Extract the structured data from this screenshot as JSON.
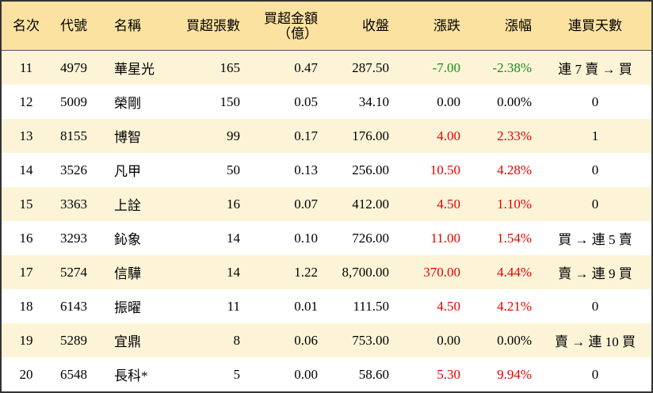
{
  "table": {
    "headers": [
      "名次",
      "代號",
      "名稱",
      "買超張數",
      "買超金額\n（億）",
      "收盤",
      "漲跌",
      "漲幅",
      "連買天數"
    ],
    "header_color": "#fce2a0",
    "stripe_color": "#fdf4d8",
    "rows": [
      {
        "cells": [
          "11",
          "4979",
          "華星光",
          "165",
          "0.47",
          "287.50",
          "-7.00",
          "-2.38%",
          "連 7 賣 → 買"
        ],
        "change_color": "#1a8c1a"
      },
      {
        "cells": [
          "12",
          "5009",
          "榮剛",
          "150",
          "0.05",
          "34.10",
          "0.00",
          "0.00%",
          "0"
        ],
        "change_color": "#000000"
      },
      {
        "cells": [
          "13",
          "8155",
          "博智",
          "99",
          "0.17",
          "176.00",
          "4.00",
          "2.33%",
          "1"
        ],
        "change_color": "#e60000"
      },
      {
        "cells": [
          "14",
          "3526",
          "凡甲",
          "50",
          "0.13",
          "256.00",
          "10.50",
          "4.28%",
          "0"
        ],
        "change_color": "#e60000"
      },
      {
        "cells": [
          "15",
          "3363",
          "上詮",
          "16",
          "0.07",
          "412.00",
          "4.50",
          "1.10%",
          "0"
        ],
        "change_color": "#e60000"
      },
      {
        "cells": [
          "16",
          "3293",
          "鈊象",
          "14",
          "0.10",
          "726.00",
          "11.00",
          "1.54%",
          "買 → 連 5 賣"
        ],
        "change_color": "#e60000"
      },
      {
        "cells": [
          "17",
          "5274",
          "信驊",
          "14",
          "1.22",
          "8,700.00",
          "370.00",
          "4.44%",
          "賣 → 連 9 買"
        ],
        "change_color": "#e60000"
      },
      {
        "cells": [
          "18",
          "6143",
          "振曜",
          "11",
          "0.01",
          "111.50",
          "4.50",
          "4.21%",
          "0"
        ],
        "change_color": "#e60000"
      },
      {
        "cells": [
          "19",
          "5289",
          "宜鼎",
          "8",
          "0.06",
          "753.00",
          "0.00",
          "0.00%",
          "賣 → 連 10 買"
        ],
        "change_color": "#000000"
      },
      {
        "cells": [
          "20",
          "6548",
          "長科*",
          "5",
          "0.00",
          "58.60",
          "5.30",
          "9.94%",
          "0"
        ],
        "change_color": "#e60000"
      }
    ]
  }
}
